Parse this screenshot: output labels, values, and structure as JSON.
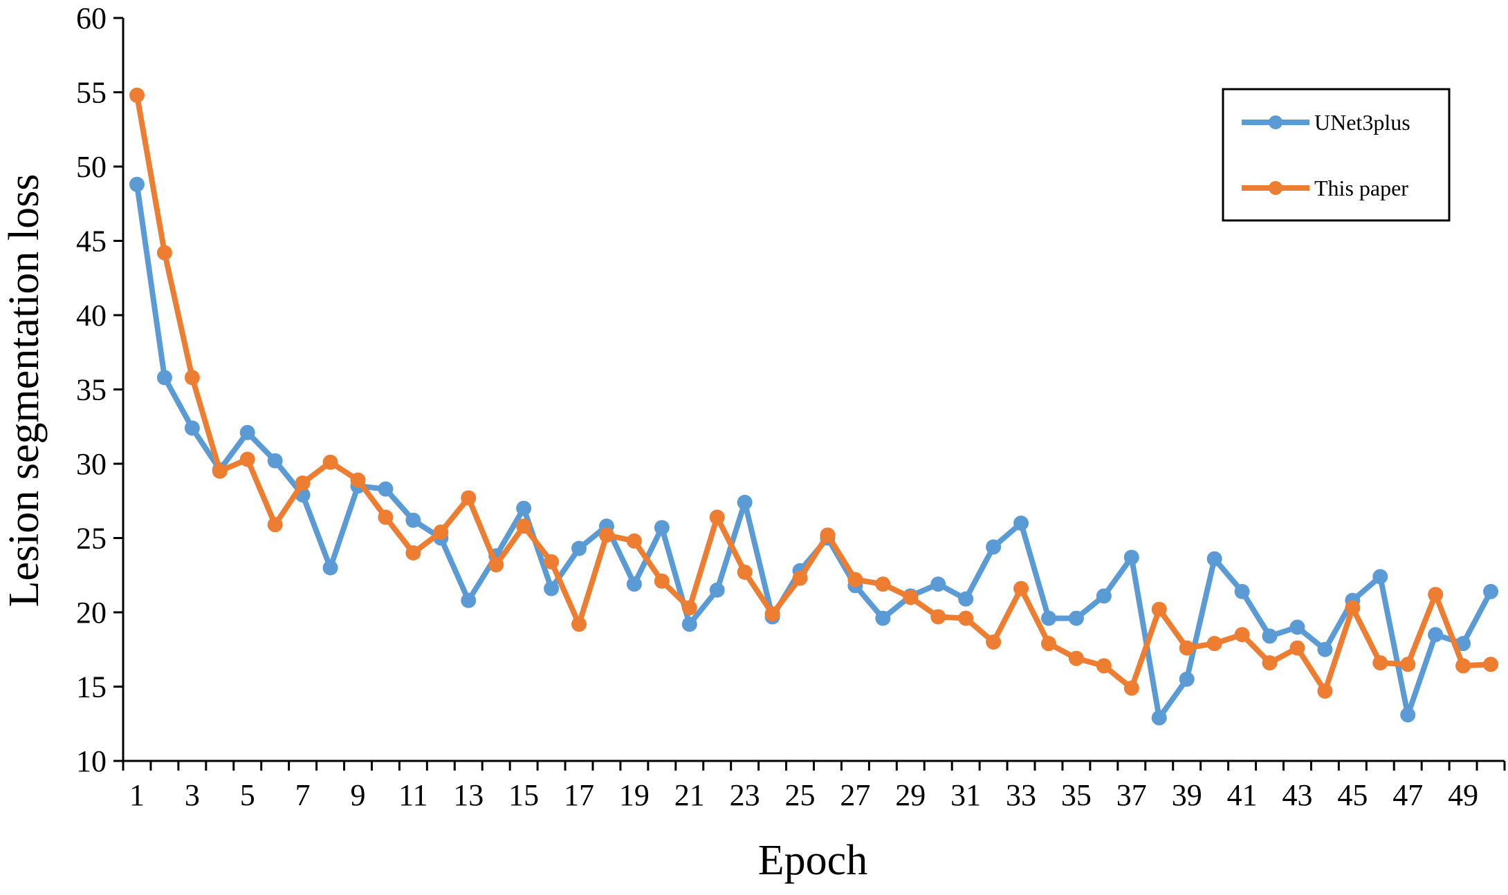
{
  "chart_data": {
    "type": "line",
    "xlabel": "Epoch",
    "ylabel": "Lesion segmentation loss",
    "ylim": [
      10,
      60
    ],
    "yticks": [
      10,
      15,
      20,
      25,
      30,
      35,
      40,
      45,
      50,
      55,
      60
    ],
    "x": [
      1,
      2,
      3,
      4,
      5,
      6,
      7,
      8,
      9,
      10,
      11,
      12,
      13,
      14,
      15,
      16,
      17,
      18,
      19,
      20,
      21,
      22,
      23,
      24,
      25,
      26,
      27,
      28,
      29,
      30,
      31,
      32,
      33,
      34,
      35,
      36,
      37,
      38,
      39,
      40,
      41,
      42,
      43,
      44,
      45,
      46,
      47,
      48,
      49,
      50
    ],
    "xtick_labels": [
      1,
      3,
      5,
      7,
      9,
      11,
      13,
      15,
      17,
      19,
      21,
      23,
      25,
      27,
      29,
      31,
      33,
      35,
      37,
      39,
      41,
      43,
      45,
      47,
      49
    ],
    "grid": false,
    "legend_position": "top-right",
    "series": [
      {
        "name": "UNet3plus",
        "color": "#5b9bd5",
        "values": [
          48.8,
          35.8,
          32.4,
          29.6,
          32.1,
          30.2,
          27.9,
          23.0,
          28.5,
          28.3,
          26.2,
          25.0,
          20.8,
          23.8,
          27.0,
          21.6,
          24.3,
          25.8,
          21.9,
          25.7,
          19.2,
          21.5,
          27.4,
          19.7,
          22.8,
          25.0,
          21.8,
          19.6,
          21.1,
          21.9,
          20.9,
          24.4,
          26.0,
          19.6,
          19.6,
          21.1,
          23.7,
          12.9,
          15.5,
          23.6,
          21.4,
          18.4,
          19.0,
          17.5,
          20.8,
          22.4,
          13.1,
          18.5,
          17.9,
          21.4
        ]
      },
      {
        "name": "This paper",
        "color": "#ed7d31",
        "values": [
          54.8,
          44.2,
          35.8,
          29.5,
          30.3,
          25.9,
          28.7,
          30.1,
          28.9,
          26.4,
          24.0,
          25.4,
          27.7,
          23.2,
          25.8,
          23.4,
          19.2,
          25.2,
          24.8,
          22.1,
          20.3,
          26.4,
          22.7,
          19.9,
          22.3,
          25.2,
          22.2,
          21.9,
          21.0,
          19.7,
          19.6,
          18.0,
          21.6,
          17.9,
          16.9,
          16.4,
          14.9,
          20.2,
          17.6,
          17.9,
          18.5,
          16.6,
          17.6,
          14.7,
          20.3,
          16.6,
          16.5,
          21.2,
          16.4,
          16.5
        ]
      }
    ]
  }
}
